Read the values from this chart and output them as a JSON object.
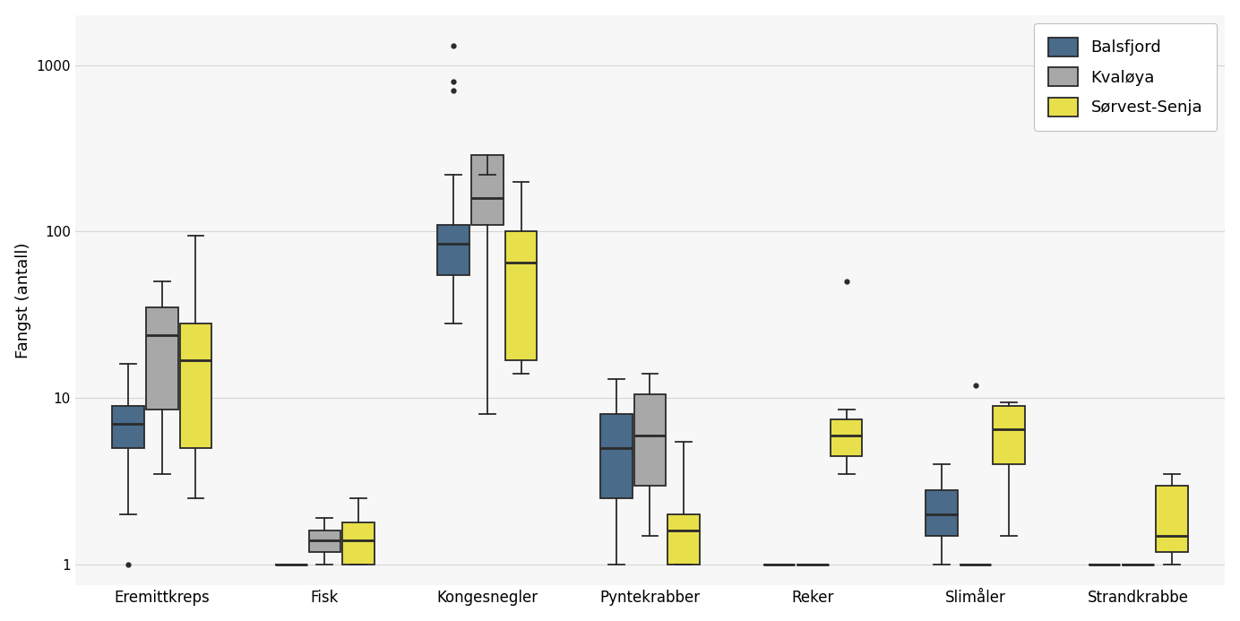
{
  "categories": [
    "Eremittkreps",
    "Fisk",
    "Kongesnegler",
    "Pyntekrabber",
    "Reker",
    "Slimåler",
    "Strandkrabbe"
  ],
  "groups": [
    "Balsfjord",
    "Kvaløya",
    "Sørvest-Senja"
  ],
  "colors": [
    "#4a6b8a",
    "#a8a8a8",
    "#e8e04a"
  ],
  "edge_color": "#2a2a2a",
  "ylabel": "Fangst (antall)",
  "background_color": "#f7f7f7",
  "ylim_log": [
    0.75,
    2000
  ],
  "yticks": [
    1,
    10,
    100,
    1000
  ],
  "box_data": {
    "Eremittkreps": {
      "Balsfjord": {
        "q1": 5.0,
        "median": 7.0,
        "q3": 9.0,
        "whislo": 2.0,
        "whishi": 16.0,
        "fliers": [
          1.0
        ]
      },
      "Kvaløya": {
        "q1": 8.5,
        "median": 24.0,
        "q3": 35.0,
        "whislo": 3.5,
        "whishi": 50.0,
        "fliers": []
      },
      "Sørvest-Senja": {
        "q1": 5.0,
        "median": 17.0,
        "q3": 28.0,
        "whislo": 2.5,
        "whishi": 95.0,
        "fliers": []
      }
    },
    "Fisk": {
      "Balsfjord": {
        "q1": 1.0,
        "median": 1.0,
        "q3": 1.0,
        "whislo": 1.0,
        "whishi": 1.0,
        "fliers": []
      },
      "Kvaløya": {
        "q1": 1.2,
        "median": 1.4,
        "q3": 1.6,
        "whislo": 1.0,
        "whishi": 1.9,
        "fliers": []
      },
      "Sørvest-Senja": {
        "q1": 1.0,
        "median": 1.4,
        "q3": 1.8,
        "whislo": 1.0,
        "whishi": 2.5,
        "fliers": []
      }
    },
    "Kongesnegler": {
      "Balsfjord": {
        "q1": 55.0,
        "median": 85.0,
        "q3": 110.0,
        "whislo": 28.0,
        "whishi": 220.0,
        "fliers": [
          700.0,
          800.0,
          1300.0
        ]
      },
      "Kvaløya": {
        "q1": 110.0,
        "median": 160.0,
        "q3": 290.0,
        "whislo": 8.0,
        "whishi": 220.0,
        "fliers": []
      },
      "Sørvest-Senja": {
        "q1": 17.0,
        "median": 65.0,
        "q3": 100.0,
        "whislo": 14.0,
        "whishi": 200.0,
        "fliers": []
      }
    },
    "Pyntekrabber": {
      "Balsfjord": {
        "q1": 2.5,
        "median": 5.0,
        "q3": 8.0,
        "whislo": 1.0,
        "whishi": 13.0,
        "fliers": []
      },
      "Kvaløya": {
        "q1": 3.0,
        "median": 6.0,
        "q3": 10.5,
        "whislo": 1.5,
        "whishi": 14.0,
        "fliers": []
      },
      "Sørvest-Senja": {
        "q1": 1.0,
        "median": 1.6,
        "q3": 2.0,
        "whislo": 1.0,
        "whishi": 5.5,
        "fliers": []
      }
    },
    "Reker": {
      "Balsfjord": {
        "q1": 1.0,
        "median": 1.0,
        "q3": 1.0,
        "whislo": 1.0,
        "whishi": 1.0,
        "fliers": []
      },
      "Kvaløya": {
        "q1": 1.0,
        "median": 1.0,
        "q3": 1.0,
        "whislo": 1.0,
        "whishi": 1.0,
        "fliers": []
      },
      "Sørvest-Senja": {
        "q1": 4.5,
        "median": 6.0,
        "q3": 7.5,
        "whislo": 3.5,
        "whishi": 8.5,
        "fliers": [
          50.0
        ]
      }
    },
    "Slimåler": {
      "Balsfjord": {
        "q1": 1.5,
        "median": 2.0,
        "q3": 2.8,
        "whislo": 1.0,
        "whishi": 4.0,
        "fliers": []
      },
      "Kvaløya": {
        "q1": 1.0,
        "median": 1.0,
        "q3": 1.0,
        "whislo": 1.0,
        "whishi": 1.0,
        "fliers": [
          12.0
        ]
      },
      "Sørvest-Senja": {
        "q1": 4.0,
        "median": 6.5,
        "q3": 9.0,
        "whislo": 1.5,
        "whishi": 9.5,
        "fliers": []
      }
    },
    "Strandkrabbe": {
      "Balsfjord": {
        "q1": 1.0,
        "median": 1.0,
        "q3": 1.0,
        "whislo": 1.0,
        "whishi": 1.0,
        "fliers": []
      },
      "Kvaløya": {
        "q1": 1.0,
        "median": 1.0,
        "q3": 1.0,
        "whislo": 1.0,
        "whishi": 1.0,
        "fliers": []
      },
      "Sørvest-Senja": {
        "q1": 1.2,
        "median": 1.5,
        "q3": 3.0,
        "whislo": 1.0,
        "whishi": 3.5,
        "fliers": []
      }
    }
  }
}
